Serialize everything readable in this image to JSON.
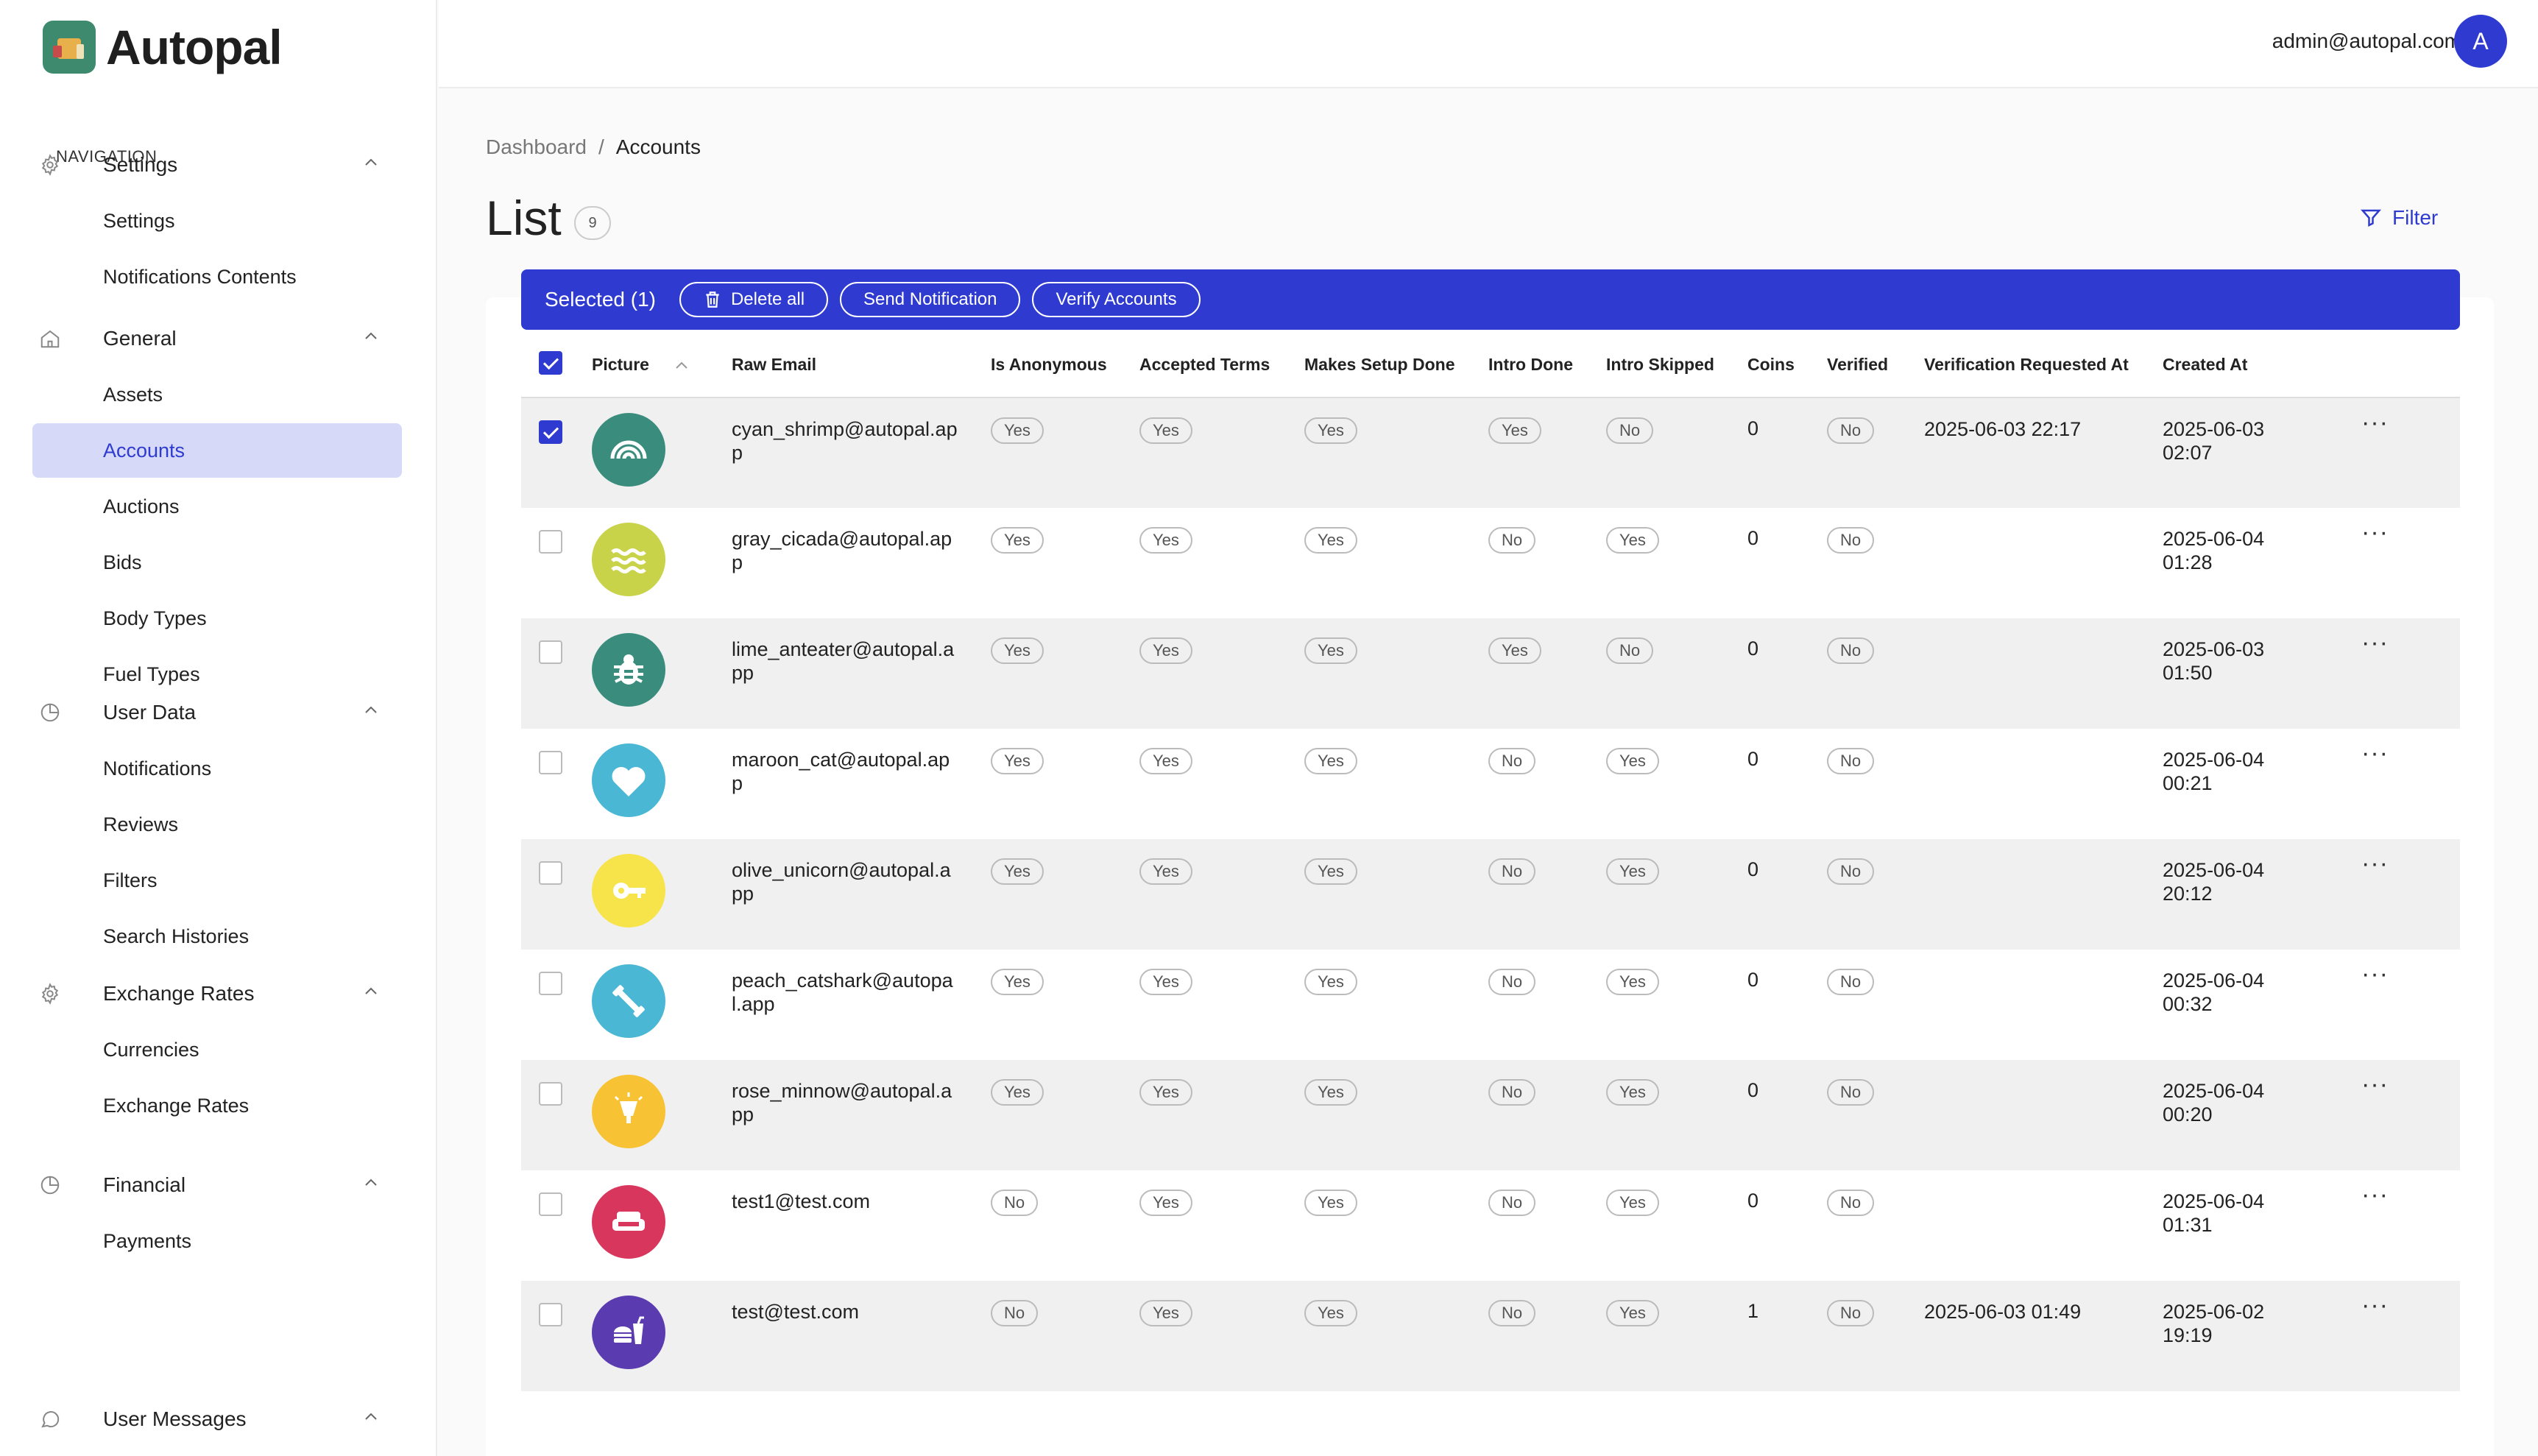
{
  "brand": {
    "name": "Autopal"
  },
  "user": {
    "email": "admin@autopal.com",
    "initial": "A"
  },
  "sidebar": {
    "heading": "NAVIGATION",
    "groups": [
      {
        "label": "Settings",
        "icon": "gear-icon",
        "items": [
          "Settings",
          "Notifications Contents"
        ]
      },
      {
        "label": "General",
        "icon": "home-icon",
        "items": [
          "Assets",
          "Accounts",
          "Auctions",
          "Bids",
          "Body Types",
          "Fuel Types"
        ]
      },
      {
        "label": "User Data",
        "icon": "pie-chart-icon",
        "items": [
          "Notifications",
          "Reviews",
          "Filters",
          "Search Histories"
        ]
      },
      {
        "label": "Exchange Rates",
        "icon": "gear-icon",
        "items": [
          "Currencies",
          "Exchange Rates"
        ]
      },
      {
        "label": "Financial",
        "icon": "pie-chart-icon",
        "items": [
          "Payments"
        ]
      },
      {
        "label": "User Messages",
        "icon": "chat-icon",
        "items": []
      }
    ],
    "active": "Accounts"
  },
  "breadcrumb": {
    "root": "Dashboard",
    "separator": "/",
    "current": "Accounts"
  },
  "page": {
    "title": "List",
    "count": "9",
    "filter_label": "Filter"
  },
  "selection": {
    "text": "Selected (1)",
    "delete_all": "Delete all",
    "send_notification": "Send Notification",
    "verify_accounts": "Verify Accounts"
  },
  "table": {
    "columns": [
      "Picture",
      "Raw Email",
      "Is Anonymous",
      "Accepted Terms",
      "Makes Setup Done",
      "Intro Done",
      "Intro Skipped",
      "Coins",
      "Verified",
      "Verification Requested At",
      "Created At"
    ],
    "rows": [
      {
        "selected": true,
        "avatar_color": "#3a8d7d",
        "avatar_icon": "rainbow-icon",
        "email": "cyan_shrimp@autopal.app",
        "anon": "Yes",
        "terms": "Yes",
        "setup": "Yes",
        "intro_done": "Yes",
        "intro_skipped": "No",
        "coins": "0",
        "verified": "No",
        "ver_req": "2025-06-03 22:17",
        "created_date": "2025-06-03",
        "created_time": "02:07"
      },
      {
        "selected": false,
        "avatar_color": "#c9d34a",
        "avatar_icon": "waves-icon",
        "email": "gray_cicada@autopal.app",
        "anon": "Yes",
        "terms": "Yes",
        "setup": "Yes",
        "intro_done": "No",
        "intro_skipped": "Yes",
        "coins": "0",
        "verified": "No",
        "ver_req": "",
        "created_date": "2025-06-04",
        "created_time": "01:28"
      },
      {
        "selected": false,
        "avatar_color": "#3a8d7d",
        "avatar_icon": "bug-icon",
        "email": "lime_anteater@autopal.app",
        "anon": "Yes",
        "terms": "Yes",
        "setup": "Yes",
        "intro_done": "Yes",
        "intro_skipped": "No",
        "coins": "0",
        "verified": "No",
        "ver_req": "",
        "created_date": "2025-06-03",
        "created_time": "01:50"
      },
      {
        "selected": false,
        "avatar_color": "#4ab7d4",
        "avatar_icon": "heart-icon",
        "email": "maroon_cat@autopal.app",
        "anon": "Yes",
        "terms": "Yes",
        "setup": "Yes",
        "intro_done": "No",
        "intro_skipped": "Yes",
        "coins": "0",
        "verified": "No",
        "ver_req": "",
        "created_date": "2025-06-04",
        "created_time": "00:21"
      },
      {
        "selected": false,
        "avatar_color": "#f7e34a",
        "avatar_icon": "key-icon",
        "email": "olive_unicorn@autopal.app",
        "anon": "Yes",
        "terms": "Yes",
        "setup": "Yes",
        "intro_done": "No",
        "intro_skipped": "Yes",
        "coins": "0",
        "verified": "No",
        "ver_req": "",
        "created_date": "2025-06-04",
        "created_time": "20:12"
      },
      {
        "selected": false,
        "avatar_color": "#4ab7d4",
        "avatar_icon": "dumbbell-icon",
        "email": "peach_catshark@autopal.app",
        "anon": "Yes",
        "terms": "Yes",
        "setup": "Yes",
        "intro_done": "No",
        "intro_skipped": "Yes",
        "coins": "0",
        "verified": "No",
        "ver_req": "",
        "created_date": "2025-06-04",
        "created_time": "00:32"
      },
      {
        "selected": false,
        "avatar_color": "#f7c233",
        "avatar_icon": "lamp-icon",
        "email": "rose_minnow@autopal.app",
        "anon": "Yes",
        "terms": "Yes",
        "setup": "Yes",
        "intro_done": "No",
        "intro_skipped": "Yes",
        "coins": "0",
        "verified": "No",
        "ver_req": "",
        "created_date": "2025-06-04",
        "created_time": "00:20"
      },
      {
        "selected": false,
        "avatar_color": "#d9365e",
        "avatar_icon": "sofa-icon",
        "email": "test1@test.com",
        "anon": "No",
        "terms": "Yes",
        "setup": "Yes",
        "intro_done": "No",
        "intro_skipped": "Yes",
        "coins": "0",
        "verified": "No",
        "ver_req": "",
        "created_date": "2025-06-04",
        "created_time": "01:31"
      },
      {
        "selected": false,
        "avatar_color": "#5a3cb0",
        "avatar_icon": "fastfood-icon",
        "email": "test@test.com",
        "anon": "No",
        "terms": "Yes",
        "setup": "Yes",
        "intro_done": "No",
        "intro_skipped": "Yes",
        "coins": "1",
        "verified": "No",
        "ver_req": "2025-06-03 01:49",
        "created_date": "2025-06-02",
        "created_time": "19:19"
      }
    ]
  },
  "colors": {
    "accent": "#2f3bd0",
    "active_bg": "#d6d9f8"
  }
}
